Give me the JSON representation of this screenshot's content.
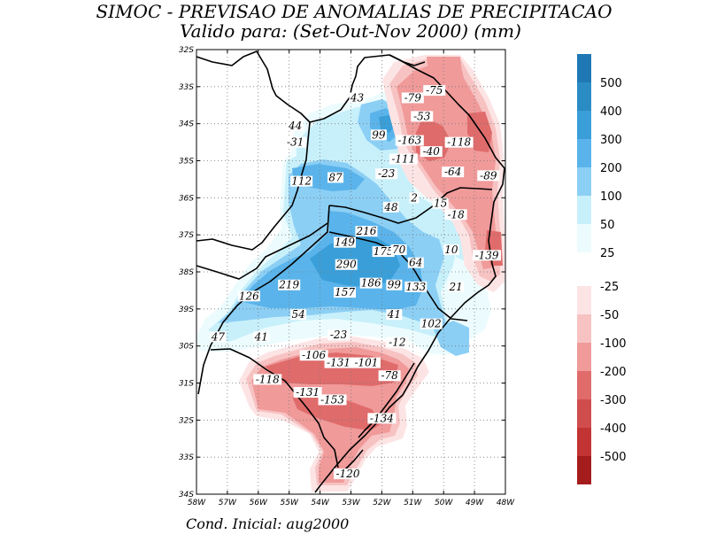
{
  "title_line1": "SIMOC - PREVISAO DE ANOMALIAS DE PRECIPITACAO",
  "title_line2": "Valido para: (Set-Out-Nov 2000) (mm)",
  "footer": "Cond. Inicial: aug2000",
  "axes": {
    "lat_labels": [
      "32S",
      "33S",
      "34S",
      "35S",
      "36S",
      "37S",
      "38S",
      "39S",
      "30S",
      "31S",
      "32S",
      "33S",
      "34S"
    ],
    "lon_labels": [
      "58W",
      "57W",
      "56W",
      "55W",
      "54W",
      "53W",
      "52W",
      "51W",
      "50W",
      "49W",
      "48W"
    ]
  },
  "colorbar": {
    "positive": [
      {
        "label": "500",
        "color": "#1f78b4"
      },
      {
        "label": "400",
        "color": "#2b8cc4"
      },
      {
        "label": "300",
        "color": "#3a9fd9"
      },
      {
        "label": "200",
        "color": "#5ab4eb"
      },
      {
        "label": "100",
        "color": "#8ccff5"
      },
      {
        "label": "50",
        "color": "#c8f0fb"
      },
      {
        "label": "25",
        "color": "#ecfcfe"
      }
    ],
    "negative": [
      {
        "label": "-25",
        "color": "#fde4e4"
      },
      {
        "label": "-50",
        "color": "#f7c2c2"
      },
      {
        "label": "-100",
        "color": "#f09a9a"
      },
      {
        "label": "-200",
        "color": "#e06b6b"
      },
      {
        "label": "-300",
        "color": "#d04d4d"
      },
      {
        "label": "-400",
        "color": "#c23434"
      },
      {
        "label": "-500",
        "color": "#a51c1c"
      }
    ]
  },
  "value_labels": [
    {
      "text": "43",
      "lon": -52.8,
      "lat": -23.35
    },
    {
      "text": "-79",
      "lon": -51.0,
      "lat": -23.35
    },
    {
      "text": "-75",
      "lon": -50.3,
      "lat": -23.15
    },
    {
      "text": "-53",
      "lon": -50.7,
      "lat": -23.85
    },
    {
      "text": "44",
      "lon": -54.8,
      "lat": -24.1
    },
    {
      "text": "99",
      "lon": -52.1,
      "lat": -24.35
    },
    {
      "text": "-31",
      "lon": -54.8,
      "lat": -24.55
    },
    {
      "text": "-163",
      "lon": -51.1,
      "lat": -24.5
    },
    {
      "text": "-118",
      "lon": -49.5,
      "lat": -24.55
    },
    {
      "text": "-40",
      "lon": -50.4,
      "lat": -24.8
    },
    {
      "text": "-111",
      "lon": -51.3,
      "lat": -25.0
    },
    {
      "text": "-23",
      "lon": -51.85,
      "lat": -25.4
    },
    {
      "text": "-64",
      "lon": -49.7,
      "lat": -25.35
    },
    {
      "text": "-89",
      "lon": -48.55,
      "lat": -25.45
    },
    {
      "text": "112",
      "lon": -54.6,
      "lat": -25.6
    },
    {
      "text": "87",
      "lon": -53.5,
      "lat": -25.5
    },
    {
      "text": "2",
      "lon": -50.95,
      "lat": -26.05
    },
    {
      "text": "48",
      "lon": -51.7,
      "lat": -26.3
    },
    {
      "text": "15",
      "lon": -50.1,
      "lat": -26.2
    },
    {
      "text": "-18",
      "lon": -49.6,
      "lat": -26.5
    },
    {
      "text": "216",
      "lon": -52.5,
      "lat": -26.95
    },
    {
      "text": "149",
      "lon": -53.2,
      "lat": -27.25
    },
    {
      "text": "175",
      "lon": -51.95,
      "lat": -27.5
    },
    {
      "text": "70",
      "lon": -51.45,
      "lat": -27.45
    },
    {
      "text": "10",
      "lon": -49.75,
      "lat": -27.45
    },
    {
      "text": "-139",
      "lon": -48.6,
      "lat": -27.6
    },
    {
      "text": "64",
      "lon": -50.9,
      "lat": -27.8
    },
    {
      "text": "290",
      "lon": -53.15,
      "lat": -27.85
    },
    {
      "text": "186",
      "lon": -52.35,
      "lat": -28.35
    },
    {
      "text": "99",
      "lon": -51.6,
      "lat": -28.4
    },
    {
      "text": "133",
      "lon": -50.9,
      "lat": -28.45
    },
    {
      "text": "21",
      "lon": -49.6,
      "lat": -28.45
    },
    {
      "text": "219",
      "lon": -55.0,
      "lat": -28.4
    },
    {
      "text": "157",
      "lon": -53.2,
      "lat": -28.6
    },
    {
      "text": "126",
      "lon": -56.3,
      "lat": -28.7
    },
    {
      "text": "54",
      "lon": -54.7,
      "lat": -29.2
    },
    {
      "text": "41",
      "lon": -51.6,
      "lat": -29.2
    },
    {
      "text": "102",
      "lon": -50.4,
      "lat": -29.45
    },
    {
      "text": "47",
      "lon": -57.3,
      "lat": -29.8
    },
    {
      "text": "41",
      "lon": -55.9,
      "lat": -29.8
    },
    {
      "text": "-23",
      "lon": -53.4,
      "lat": -29.75
    },
    {
      "text": "-12",
      "lon": -51.5,
      "lat": -29.95
    },
    {
      "text": "-106",
      "lon": -54.2,
      "lat": -30.3
    },
    {
      "text": "-131",
      "lon": -53.4,
      "lat": -30.5
    },
    {
      "text": "-101",
      "lon": -52.5,
      "lat": -30.5
    },
    {
      "text": "-78",
      "lon": -51.75,
      "lat": -30.85
    },
    {
      "text": "-118",
      "lon": -55.7,
      "lat": -30.95
    },
    {
      "text": "-131",
      "lon": -54.4,
      "lat": -31.3
    },
    {
      "text": "-153",
      "lon": -53.6,
      "lat": -31.5
    },
    {
      "text": "-134",
      "lon": -52.0,
      "lat": -32.0
    },
    {
      "text": "-120",
      "lon": -53.1,
      "lat": -33.5
    }
  ]
}
